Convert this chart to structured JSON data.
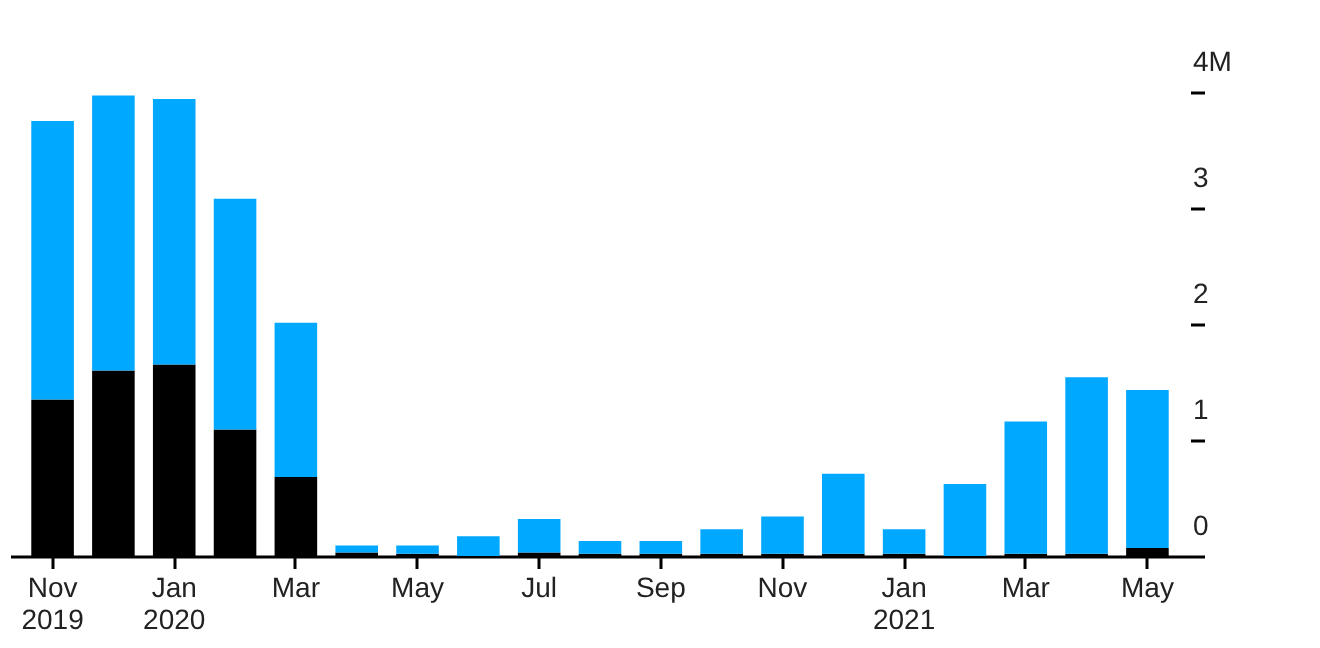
{
  "chart_data": {
    "type": "bar",
    "stacked": true,
    "categories": [
      "Nov\n2019",
      null,
      "Jan\n2020",
      null,
      "Mar",
      null,
      "May",
      null,
      "Jul",
      null,
      "Sep",
      null,
      "Nov",
      null,
      "Jan\n2021",
      null,
      "Mar",
      null,
      "May"
    ],
    "series": [
      {
        "color": "#000000",
        "values": [
          1.35,
          1.6,
          1.65,
          1.09,
          0.68,
          0.03,
          0.02,
          0,
          0.03,
          0.02,
          0.02,
          0.02,
          0.02,
          0.02,
          0.02,
          0,
          0.02,
          0.02,
          0.07
        ]
      },
      {
        "color": "#00a8ff",
        "values": [
          2.4,
          2.37,
          2.29,
          1.99,
          1.33,
          0.06,
          0.07,
          0.17,
          0.29,
          0.11,
          0.11,
          0.21,
          0.32,
          0.69,
          0.21,
          0.62,
          1.14,
          1.52,
          1.36
        ]
      }
    ],
    "ylim": [
      0,
      4
    ],
    "yticks": [
      0,
      1,
      2,
      3,
      {
        "value": 4,
        "label": "4M"
      }
    ],
    "grid": false,
    "legend": false
  }
}
